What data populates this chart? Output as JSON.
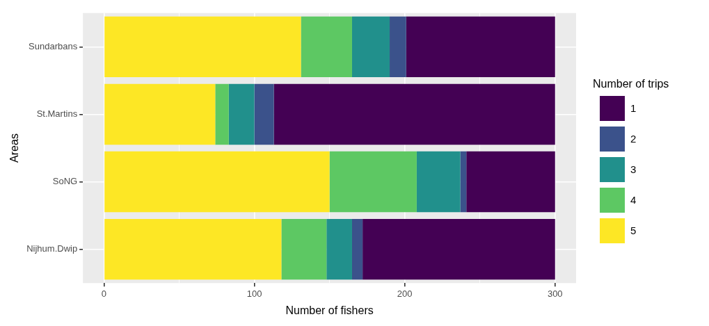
{
  "chart_data": {
    "type": "bar",
    "orientation": "horizontal",
    "stacked": true,
    "xlabel": "Number of fishers",
    "ylabel": "Areas",
    "legend_title": "Number of trips",
    "categories": [
      "Sundarbans",
      "St.Martins",
      "SoNG",
      "Nijhum.Dwip"
    ],
    "series": [
      {
        "name": "5",
        "color": "#fde725",
        "values": [
          131,
          74,
          150,
          118
        ]
      },
      {
        "name": "4",
        "color": "#5dc863",
        "values": [
          34,
          9,
          58,
          30
        ]
      },
      {
        "name": "3",
        "color": "#21908c",
        "values": [
          25,
          17,
          29,
          17
        ]
      },
      {
        "name": "2",
        "color": "#3b528b",
        "values": [
          11,
          13,
          4,
          7
        ]
      },
      {
        "name": "1",
        "color": "#440154",
        "values": [
          99,
          187,
          59,
          128
        ]
      }
    ],
    "xlim": [
      -14,
      314
    ],
    "xticks": [
      0,
      {
        "value": 50,
        "label": null
      },
      100,
      {
        "value": 150,
        "label": null
      },
      200,
      {
        "value": 250,
        "label": null
      },
      300
    ],
    "grid": true,
    "legend": "right"
  }
}
